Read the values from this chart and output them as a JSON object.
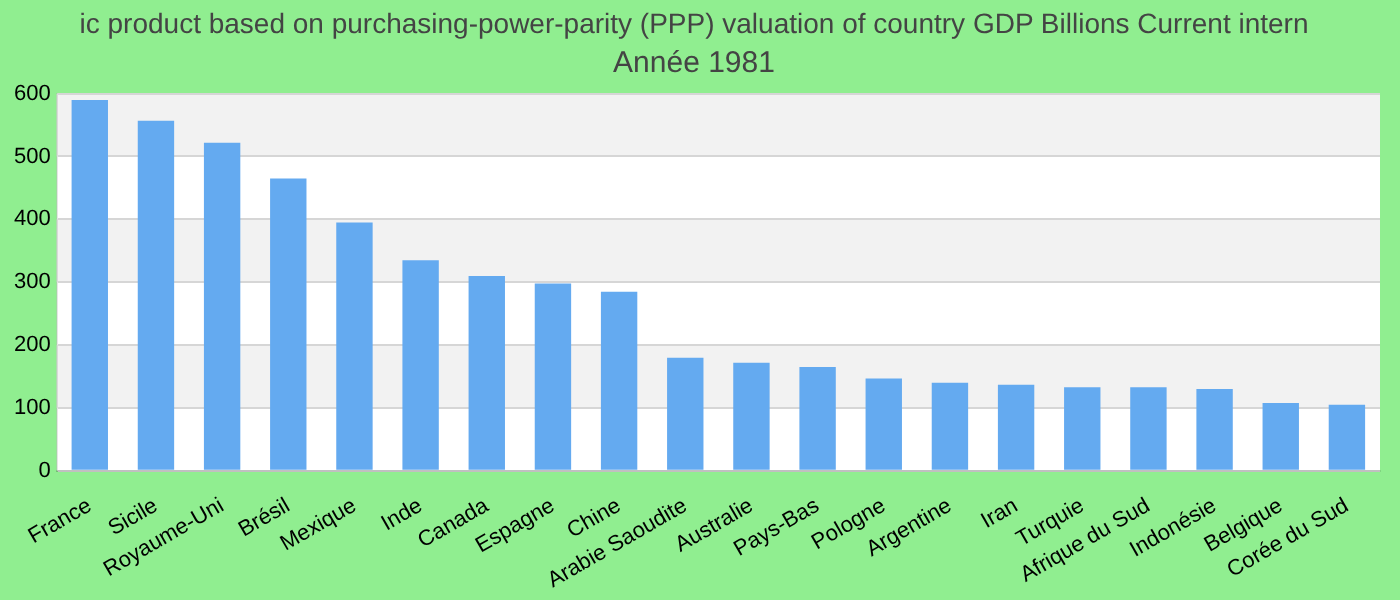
{
  "chart_data": {
    "type": "bar",
    "title": "ic product based on purchasing-power-parity (PPP) valuation of country GDP Billions Current intern",
    "subtitle": "Année 1981",
    "categories": [
      "France",
      "Sicile",
      "Royaume-Uni",
      "Brésil",
      "Mexique",
      "Inde",
      "Canada",
      "Espagne",
      "Chine",
      "Arabie Saoudite",
      "Australie",
      "Pays-Bas",
      "Pologne",
      "Argentine",
      "Iran",
      "Turquie",
      "Afrique du Sud",
      "Indonésie",
      "Belgique",
      "Corée du Sud"
    ],
    "values": [
      590,
      557,
      522,
      465,
      395,
      335,
      310,
      298,
      285,
      180,
      172,
      165,
      147,
      140,
      137,
      133,
      133,
      130,
      108,
      105
    ],
    "color": "#64aaf0",
    "ylim": [
      0,
      600
    ],
    "yticks": [
      0,
      100,
      200,
      300,
      400,
      500,
      600
    ],
    "grid": "y",
    "legend": false
  }
}
